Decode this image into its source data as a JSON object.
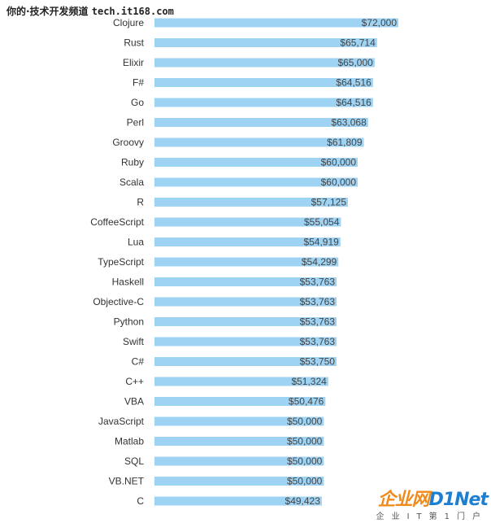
{
  "chart_data": {
    "type": "bar",
    "orientation": "horizontal",
    "categories": [
      "Clojure",
      "Rust",
      "Elixir",
      "F#",
      "Go",
      "Perl",
      "Groovy",
      "Ruby",
      "Scala",
      "R",
      "CoffeeScript",
      "Lua",
      "TypeScript",
      "Haskell",
      "Objective-C",
      "Python",
      "Swift",
      "C#",
      "C++",
      "VBA",
      "JavaScript",
      "Matlab",
      "SQL",
      "VB.NET",
      "C"
    ],
    "values": [
      72000,
      65714,
      65000,
      64516,
      64516,
      63068,
      61809,
      60000,
      60000,
      57125,
      55054,
      54919,
      54299,
      53763,
      53763,
      53763,
      53763,
      53750,
      51324,
      50476,
      50000,
      50000,
      50000,
      50000,
      49423
    ],
    "value_labels": [
      "$72,000",
      "$65,714",
      "$65,000",
      "$64,516",
      "$64,516",
      "$63,068",
      "$61,809",
      "$60,000",
      "$60,000",
      "$57,125",
      "$55,054",
      "$54,919",
      "$54,299",
      "$53,763",
      "$53,763",
      "$53,763",
      "$53,763",
      "$53,750",
      "$51,324",
      "$50,476",
      "$50,000",
      "$50,000",
      "$50,000",
      "$50,000",
      "$49,423"
    ],
    "bar_color": "#9fd3f3",
    "title": "",
    "xlabel": "",
    "ylabel": ""
  },
  "watermark": {
    "top_text": "你的·技术开发频道",
    "top_url": "tech.it168.com",
    "logo_a": "企业网",
    "logo_b": "D1Net",
    "logo_tagline": "企业IT第1门户"
  }
}
